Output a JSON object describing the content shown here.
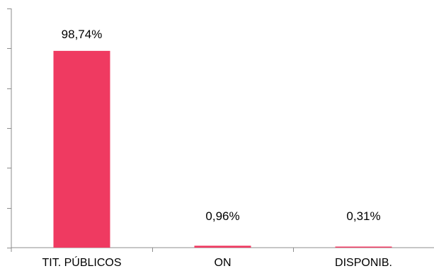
{
  "chart_data": {
    "type": "bar",
    "categories": [
      "TIT. PÚBLICOS",
      "ON",
      "DISPONIB."
    ],
    "values": [
      98.74,
      0.96,
      0.31
    ],
    "data_labels": [
      "98,74%",
      "0,96%",
      "0,31%"
    ],
    "title": "",
    "xlabel": "",
    "ylabel": "",
    "ylim": [
      0,
      120
    ],
    "yticks": [
      0,
      20,
      40,
      60,
      80,
      100,
      120
    ],
    "y_tick_labels_visible": false,
    "grid": false,
    "legend": "none",
    "bar_color": "#ef3a61",
    "axis_color": "#8c8c8c"
  }
}
